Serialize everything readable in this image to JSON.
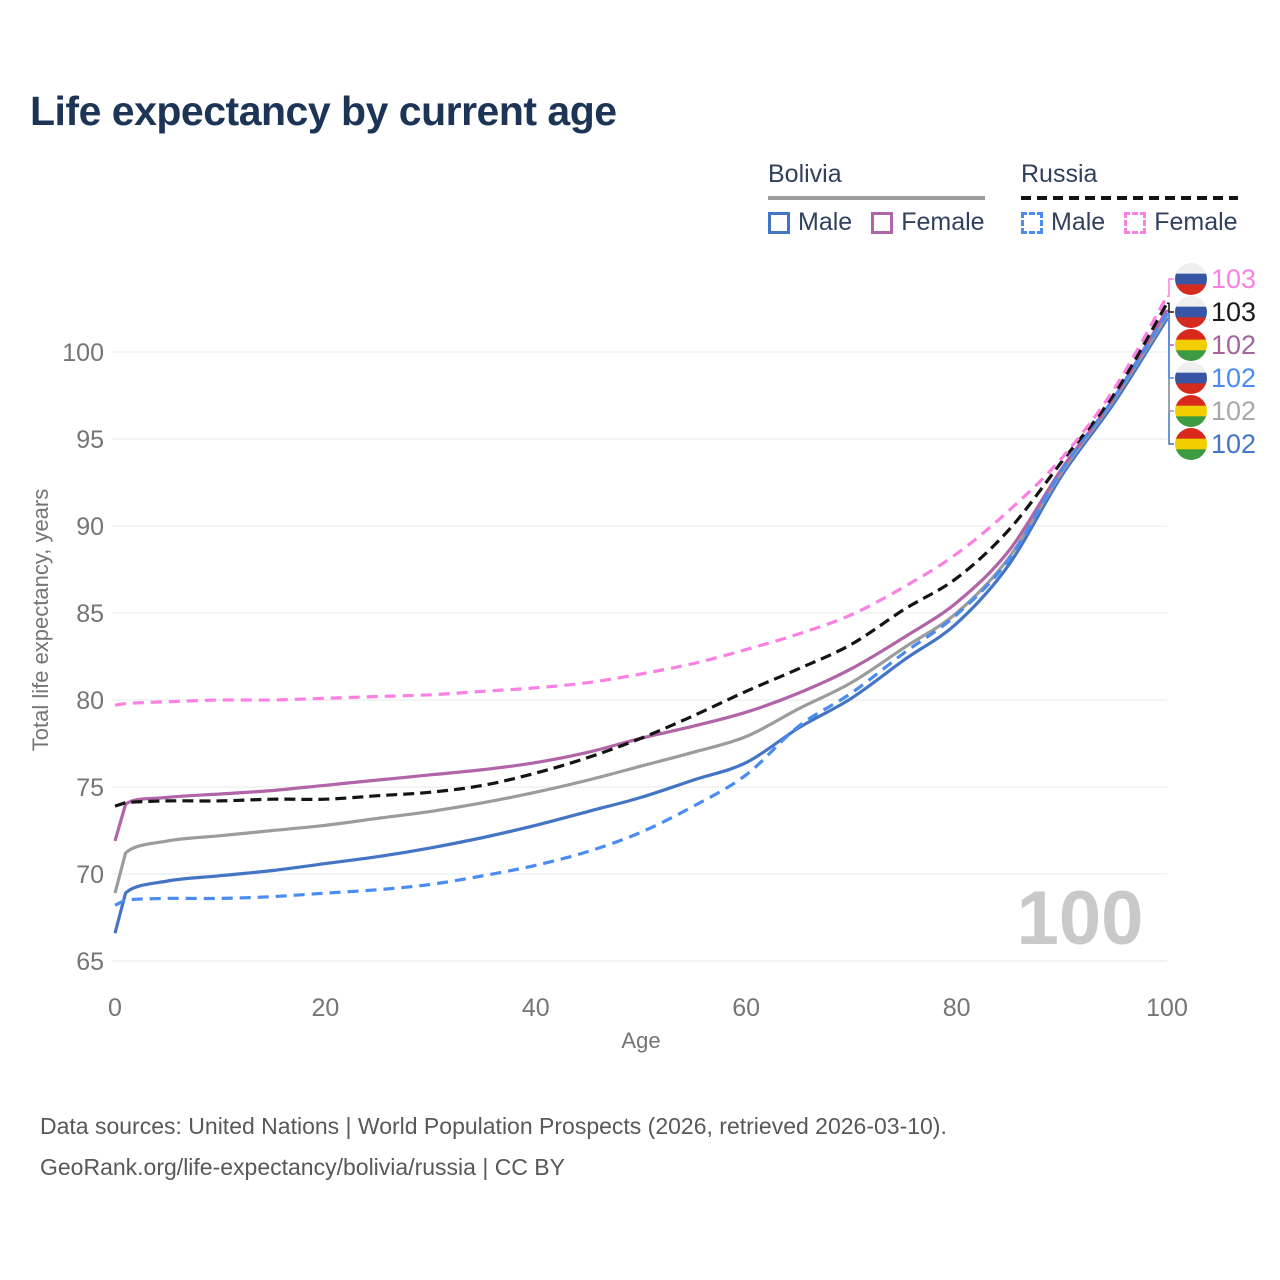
{
  "title": "Life expectancy by current age",
  "watermark_age": "100",
  "legend": {
    "groups": [
      {
        "label": "Bolivia",
        "line_style": "solid",
        "line_color": "#9c9c9c",
        "items": [
          {
            "label": "Male",
            "color": "#4474c4",
            "dashed": false
          },
          {
            "label": "Female",
            "color": "#b164a8",
            "dashed": false
          }
        ]
      },
      {
        "label": "Russia",
        "line_style": "dashed",
        "line_color": "#141414",
        "items": [
          {
            "label": "Male",
            "color": "#4a8cf2",
            "dashed": true
          },
          {
            "label": "Female",
            "color": "#fb80e2",
            "dashed": true
          }
        ]
      }
    ]
  },
  "chart_data": {
    "type": "line",
    "title": "Life expectancy by current age",
    "xlabel": "Age",
    "ylabel": "Total life expectancy, years",
    "xlim": [
      0,
      100
    ],
    "ylim": [
      65,
      103.5
    ],
    "x_ticks": [
      0,
      20,
      40,
      60,
      80,
      100
    ],
    "y_ticks": [
      65,
      70,
      75,
      80,
      85,
      90,
      95,
      100
    ],
    "grid": "horizontal-only",
    "legend_position": "top-right",
    "x": [
      0,
      1,
      5,
      10,
      15,
      20,
      25,
      30,
      35,
      40,
      45,
      50,
      55,
      60,
      65,
      70,
      75,
      80,
      85,
      90,
      95,
      100
    ],
    "series": [
      {
        "id": "bolivia-male",
        "name": "Bolivia Male",
        "country": "Bolivia",
        "sex": "Male",
        "color": "#4474c4",
        "dashed": false,
        "end_label": "102",
        "end_label_color": "#4474c4",
        "flag": "bolivia",
        "label_row": 5,
        "values": [
          66.6,
          68.9,
          69.6,
          69.9,
          70.2,
          70.6,
          71.0,
          71.5,
          72.1,
          72.8,
          73.6,
          74.4,
          75.4,
          76.4,
          78.4,
          80.1,
          82.3,
          84.4,
          87.8,
          92.9,
          97.1,
          101.9
        ]
      },
      {
        "id": "bolivia-total",
        "name": "Bolivia (both sexes)",
        "country": "Bolivia",
        "sex": "Both",
        "color": "#9c9c9c",
        "dashed": false,
        "end_label": "102",
        "end_label_color": "#a9a9a9",
        "flag": "bolivia",
        "label_row": 4,
        "values": [
          68.9,
          71.2,
          71.9,
          72.2,
          72.5,
          72.8,
          73.2,
          73.6,
          74.1,
          74.7,
          75.4,
          76.2,
          77.0,
          77.9,
          79.5,
          81.0,
          83.0,
          85.0,
          88.2,
          93.1,
          97.3,
          102.1
        ]
      },
      {
        "id": "bolivia-female",
        "name": "Bolivia Female",
        "country": "Bolivia",
        "sex": "Female",
        "color": "#b164a8",
        "dashed": false,
        "end_label": "102",
        "end_label_color": "#a4639e",
        "flag": "bolivia",
        "label_row": 2,
        "values": [
          71.9,
          74.0,
          74.4,
          74.6,
          74.8,
          75.1,
          75.4,
          75.7,
          76.0,
          76.4,
          77.0,
          77.8,
          78.5,
          79.3,
          80.4,
          81.8,
          83.6,
          85.6,
          88.6,
          93.3,
          97.4,
          102.4
        ]
      },
      {
        "id": "russia-male",
        "name": "Russia Male",
        "country": "Russia",
        "sex": "Male",
        "color": "#4a8cf2",
        "dashed": true,
        "end_label": "102",
        "end_label_color": "#4a8cf2",
        "flag": "russia",
        "label_row": 3,
        "values": [
          68.2,
          68.5,
          68.6,
          68.6,
          68.7,
          68.9,
          69.1,
          69.4,
          69.9,
          70.5,
          71.3,
          72.4,
          73.9,
          75.7,
          78.5,
          80.4,
          82.7,
          84.9,
          88.1,
          93.2,
          97.4,
          102.2
        ]
      },
      {
        "id": "russia-total",
        "name": "Russia (both sexes)",
        "country": "Russia",
        "sex": "Both",
        "color": "#141414",
        "dashed": true,
        "end_label": "103",
        "end_label_color": "#1a1a1a",
        "flag": "russia",
        "label_row": 1,
        "values": [
          73.9,
          74.1,
          74.2,
          74.2,
          74.3,
          74.3,
          74.5,
          74.7,
          75.1,
          75.8,
          76.7,
          77.8,
          79.1,
          80.5,
          81.8,
          83.2,
          85.2,
          87.0,
          89.8,
          93.7,
          97.6,
          102.8
        ]
      },
      {
        "id": "russia-female",
        "name": "Russia Female",
        "country": "Russia",
        "sex": "Female",
        "color": "#fb80e2",
        "dashed": true,
        "end_label": "103",
        "end_label_color": "#fb80e2",
        "flag": "russia",
        "label_row": 0,
        "values": [
          79.7,
          79.8,
          79.9,
          80.0,
          80.0,
          80.1,
          80.2,
          80.3,
          80.5,
          80.7,
          81.0,
          81.5,
          82.1,
          82.9,
          83.8,
          84.9,
          86.5,
          88.4,
          90.9,
          93.9,
          97.9,
          103.2
        ]
      }
    ],
    "flag_colors": {
      "russia": [
        "#efefef",
        "#3757a6",
        "#d52b1e"
      ],
      "bolivia": [
        "#d9291c",
        "#f2ce00",
        "#3c9a40"
      ]
    }
  },
  "footer": {
    "line1": "Data sources: United Nations | World Population Prospects (2026, retrieved 2026-03-10).",
    "line2": "GeoRank.org/life-expectancy/bolivia/russia | CC BY"
  }
}
